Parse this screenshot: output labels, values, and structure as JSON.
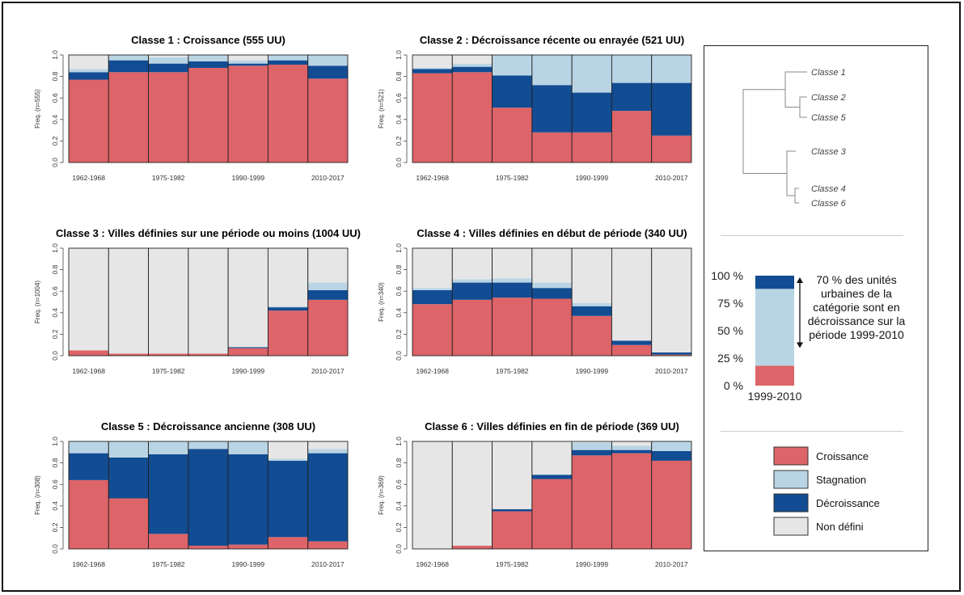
{
  "colors": {
    "croissance": "#dd6468",
    "stagnation": "#b9d4e4",
    "decroissance": "#124c93",
    "non_defini": "#e6e6e6"
  },
  "chart_data": [
    {
      "type": "bar",
      "stacked": true,
      "title": "Classe 1 : Croissance (555 UU)",
      "ylabel": "Freq. (n=555)",
      "ylim": [
        0,
        1
      ],
      "yticks": [
        "0.0",
        "0.2",
        "0.4",
        "0.6",
        "0.8",
        "1.0"
      ],
      "xtick_labels": [
        "1962-1968",
        "1975-1982",
        "1990-1999",
        "2010-2017"
      ],
      "series_order": [
        "Croissance",
        "Décroissance",
        "Stagnation",
        "Non défini"
      ],
      "bars": [
        [
          0.77,
          0.07,
          0.03,
          0.13
        ],
        [
          0.84,
          0.11,
          0.05,
          0.0
        ],
        [
          0.84,
          0.08,
          0.06,
          0.02
        ],
        [
          0.88,
          0.06,
          0.06,
          0.0
        ],
        [
          0.9,
          0.02,
          0.03,
          0.05
        ],
        [
          0.91,
          0.04,
          0.05,
          0.0
        ],
        [
          0.78,
          0.12,
          0.1,
          0.0
        ]
      ]
    },
    {
      "type": "bar",
      "stacked": true,
      "title": "Classe 2 : Décroissance récente ou enrayée (521 UU)",
      "ylabel": "Freq. (n=521)",
      "ylim": [
        0,
        1
      ],
      "yticks": [
        "0.0",
        "0.2",
        "0.4",
        "0.6",
        "0.8",
        "1.0"
      ],
      "xtick_labels": [
        "1962-1968",
        "1975-1982",
        "1990-1999",
        "2010-2017"
      ],
      "series_order": [
        "Croissance",
        "Décroissance",
        "Stagnation",
        "Non défini"
      ],
      "bars": [
        [
          0.83,
          0.04,
          0.01,
          0.12
        ],
        [
          0.84,
          0.05,
          0.03,
          0.08
        ],
        [
          0.51,
          0.3,
          0.19,
          0.0
        ],
        [
          0.28,
          0.44,
          0.28,
          0.0
        ],
        [
          0.28,
          0.37,
          0.35,
          0.0
        ],
        [
          0.48,
          0.26,
          0.26,
          0.0
        ],
        [
          0.25,
          0.49,
          0.26,
          0.0
        ]
      ]
    },
    {
      "type": "bar",
      "stacked": true,
      "title": "Classe 3 : Villes définies sur une période ou moins (1004 UU)",
      "ylabel": "Freq. (n=1004)",
      "ylim": [
        0,
        1
      ],
      "yticks": [
        "0.0",
        "0.2",
        "0.4",
        "0.6",
        "0.8",
        "1.0"
      ],
      "xtick_labels": [
        "1962-1968",
        "1975-1982",
        "1990-1999",
        "2010-2017"
      ],
      "series_order": [
        "Croissance",
        "Décroissance",
        "Stagnation",
        "Non défini"
      ],
      "bars": [
        [
          0.05,
          0.0,
          0.0,
          0.95
        ],
        [
          0.02,
          0.0,
          0.0,
          0.98
        ],
        [
          0.02,
          0.0,
          0.0,
          0.98
        ],
        [
          0.02,
          0.0,
          0.0,
          0.98
        ],
        [
          0.07,
          0.01,
          0.0,
          0.92
        ],
        [
          0.42,
          0.03,
          0.01,
          0.54
        ],
        [
          0.52,
          0.09,
          0.07,
          0.32
        ]
      ]
    },
    {
      "type": "bar",
      "stacked": true,
      "title": "Classe 4 : Villes définies en début de période (340 UU)",
      "ylabel": "Freq. (n=340)",
      "ylim": [
        0,
        1
      ],
      "yticks": [
        "0.0",
        "0.2",
        "0.4",
        "0.6",
        "0.8",
        "1.0"
      ],
      "xtick_labels": [
        "1962-1968",
        "1975-1982",
        "1990-1999",
        "2010-2017"
      ],
      "series_order": [
        "Croissance",
        "Décroissance",
        "Stagnation",
        "Non défini"
      ],
      "bars": [
        [
          0.48,
          0.13,
          0.02,
          0.37
        ],
        [
          0.52,
          0.16,
          0.03,
          0.29
        ],
        [
          0.54,
          0.14,
          0.04,
          0.28
        ],
        [
          0.53,
          0.1,
          0.05,
          0.32
        ],
        [
          0.37,
          0.09,
          0.03,
          0.51
        ],
        [
          0.1,
          0.04,
          0.0,
          0.86
        ],
        [
          0.01,
          0.02,
          0.0,
          0.97
        ]
      ]
    },
    {
      "type": "bar",
      "stacked": true,
      "title": "Classe 5 : Décroissance ancienne (308 UU)",
      "ylabel": "Freq. (n=308)",
      "ylim": [
        0,
        1
      ],
      "yticks": [
        "0.0",
        "0.2",
        "0.4",
        "0.6",
        "0.8",
        "1.0"
      ],
      "xtick_labels": [
        "1962-1968",
        "1975-1982",
        "1990-1999",
        "2010-2017"
      ],
      "series_order": [
        "Croissance",
        "Décroissance",
        "Stagnation",
        "Non défini"
      ],
      "bars": [
        [
          0.64,
          0.25,
          0.11,
          0.0
        ],
        [
          0.47,
          0.38,
          0.15,
          0.0
        ],
        [
          0.14,
          0.74,
          0.12,
          0.0
        ],
        [
          0.03,
          0.9,
          0.07,
          0.0
        ],
        [
          0.04,
          0.84,
          0.12,
          0.0
        ],
        [
          0.11,
          0.71,
          0.02,
          0.16
        ],
        [
          0.07,
          0.82,
          0.04,
          0.07
        ]
      ]
    },
    {
      "type": "bar",
      "stacked": true,
      "title": "Classe 6 : Villes définies en fin de période (369 UU)",
      "ylabel": "Freq. (n=369)",
      "ylim": [
        0,
        1
      ],
      "yticks": [
        "0.0",
        "0.2",
        "0.4",
        "0.6",
        "0.8",
        "1.0"
      ],
      "xtick_labels": [
        "1962-1968",
        "1975-1982",
        "1990-1999",
        "2010-2017"
      ],
      "series_order": [
        "Croissance",
        "Décroissance",
        "Stagnation",
        "Non défini"
      ],
      "bars": [
        [
          0.0,
          0.0,
          0.0,
          1.0
        ],
        [
          0.03,
          0.0,
          0.0,
          0.97
        ],
        [
          0.35,
          0.02,
          0.0,
          0.63
        ],
        [
          0.65,
          0.04,
          0.0,
          0.31
        ],
        [
          0.87,
          0.05,
          0.07,
          0.01
        ],
        [
          0.89,
          0.03,
          0.04,
          0.04
        ],
        [
          0.82,
          0.09,
          0.09,
          0.0
        ]
      ]
    }
  ],
  "dendrogram": {
    "labels": [
      "Classe 1",
      "Classe 2",
      "Classe 5",
      "Classe 3",
      "Classe 4",
      "Classe 6"
    ]
  },
  "example": {
    "yticks": [
      "100 %",
      "75 %",
      "50 %",
      "25 %",
      "0 %"
    ],
    "xlabel": "1999-2010",
    "bar": [
      0.18,
      0.7,
      0.12
    ],
    "annotation": [
      "70 % des unités",
      "urbaines de la",
      "catégorie sont en",
      "décroissance sur la",
      "période 1999-2010"
    ]
  },
  "legend": [
    {
      "label": "Croissance",
      "color": "#dd6468"
    },
    {
      "label": "Stagnation",
      "color": "#b9d4e4"
    },
    {
      "label": "Décroissance",
      "color": "#124c93"
    },
    {
      "label": "Non défini",
      "color": "#e6e6e6"
    }
  ]
}
